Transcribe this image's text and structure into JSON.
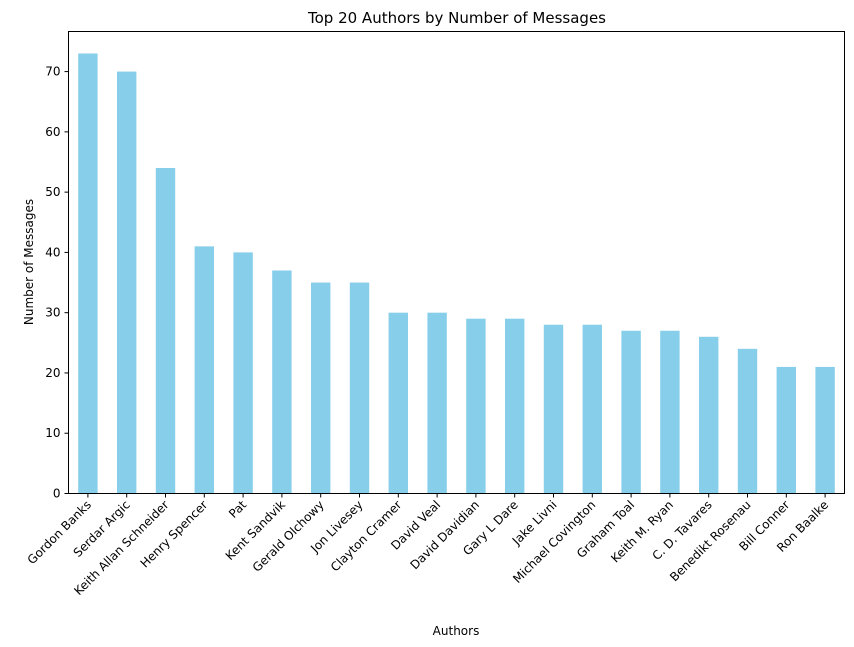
{
  "chart_data": {
    "type": "bar",
    "title": "Top 20 Authors by Number of Messages",
    "xlabel": "Authors",
    "ylabel": "Number of Messages",
    "categories": [
      "Gordon Banks",
      "Serdar Argic",
      "Keith Allan Schneider",
      "Henry Spencer",
      "Pat",
      "Kent Sandvik",
      "Gerald Olchowy",
      "Jon Livesey",
      "Clayton Cramer",
      "David Veal",
      "David Davidian",
      "Gary L Dare",
      "Jake Livni",
      "Michael Covington",
      "Graham Toal",
      "Keith M. Ryan",
      "C. D. Tavares",
      "Benedikt Rosenau",
      "Bill Conner",
      "Ron Baalke"
    ],
    "values": [
      73,
      70,
      54,
      41,
      40,
      37,
      35,
      35,
      30,
      30,
      29,
      29,
      28,
      28,
      27,
      27,
      26,
      24,
      21,
      21
    ],
    "ylim": [
      0,
      76.65
    ],
    "yticks": [
      0,
      10,
      20,
      30,
      40,
      50,
      60,
      70
    ],
    "bar_color": "#87ceeb",
    "grid": false,
    "legend": "none"
  }
}
